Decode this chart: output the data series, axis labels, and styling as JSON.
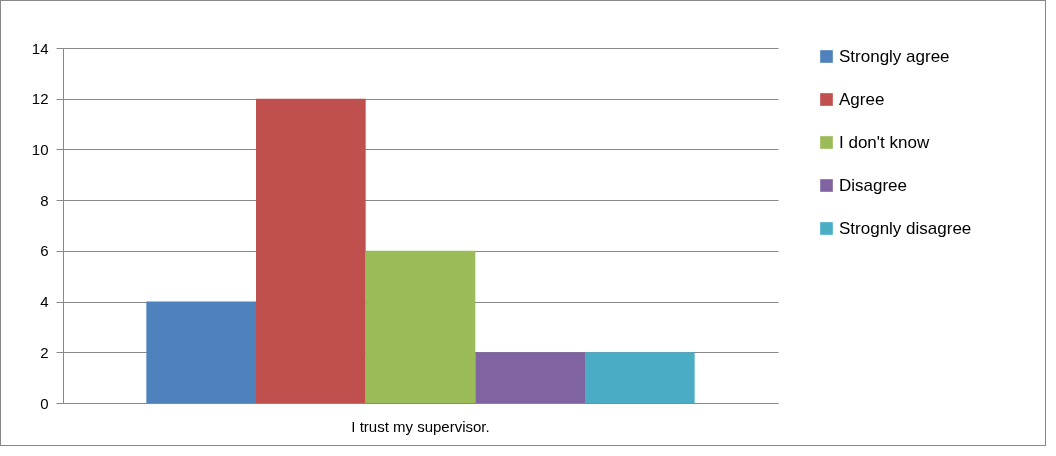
{
  "chart_data": {
    "type": "bar",
    "categories": [
      "I trust my supervisor."
    ],
    "series": [
      {
        "name": "Strongly agree",
        "color": "#4f81bd",
        "values": [
          4
        ]
      },
      {
        "name": "Agree",
        "color": "#c0504d",
        "values": [
          12
        ]
      },
      {
        "name": "I don't know",
        "color": "#9bbb59",
        "values": [
          6
        ]
      },
      {
        "name": "Disagree",
        "color": "#8064a2",
        "values": [
          2
        ]
      },
      {
        "name": "Strognly disagree",
        "color": "#4bacc6",
        "values": [
          2
        ]
      }
    ],
    "ylim": [
      0,
      14
    ],
    "yticks": [
      0,
      2,
      4,
      6,
      8,
      10,
      12,
      14
    ],
    "grid": "y",
    "legend": "right"
  }
}
